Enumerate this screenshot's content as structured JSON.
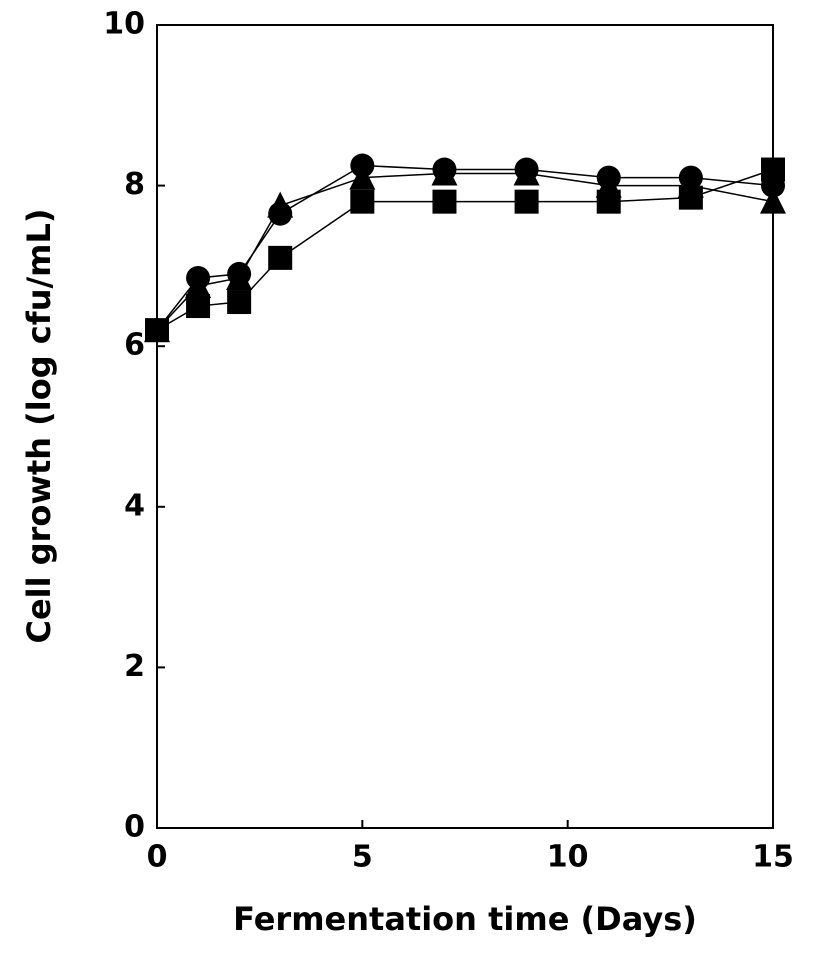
{
  "chart_data": {
    "type": "line",
    "x_label": "Fermentation time (Days)",
    "y_label": "Cell growth (log cfu/mL)",
    "x": [
      0,
      1,
      2,
      3,
      5,
      7,
      9,
      11,
      13,
      15
    ],
    "series": [
      {
        "marker": "circle",
        "color": "#000000",
        "values": [
          6.2,
          6.85,
          6.9,
          7.65,
          8.25,
          8.2,
          8.2,
          8.1,
          8.1,
          8.0
        ]
      },
      {
        "marker": "triangle",
        "color": "#000000",
        "values": [
          6.2,
          6.75,
          6.85,
          7.75,
          8.1,
          8.15,
          8.15,
          8.0,
          8.0,
          7.8
        ]
      },
      {
        "marker": "square",
        "color": "#000000",
        "values": [
          6.2,
          6.5,
          6.55,
          7.1,
          7.8,
          7.8,
          7.8,
          7.8,
          7.85,
          8.2
        ]
      }
    ],
    "xlim": [
      0,
      15
    ],
    "xticks": [
      0,
      5,
      10,
      15
    ],
    "ylim": [
      0,
      10
    ],
    "yticks": [
      0,
      2,
      4,
      6,
      8,
      10
    ]
  }
}
